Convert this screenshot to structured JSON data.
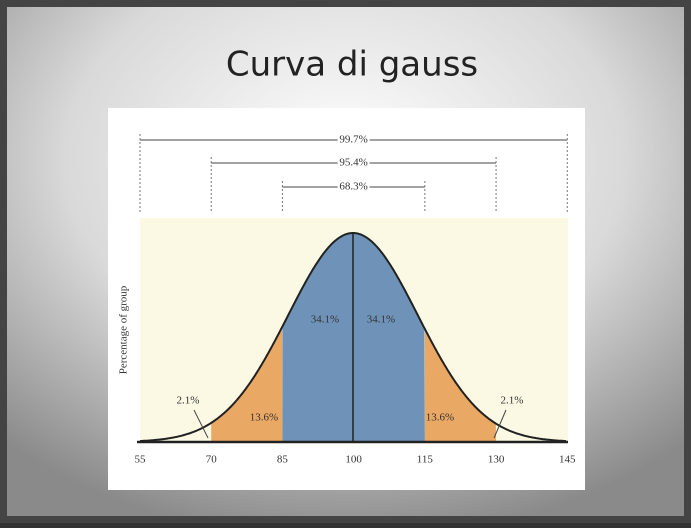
{
  "title": "Curva di gauss",
  "y_axis_label": "Percentage of group",
  "ranges": [
    "99.7%",
    "95.4%",
    "68.3%"
  ],
  "regions": [
    "2.1%",
    "13.6%",
    "34.1%",
    "34.1%",
    "13.6%",
    "2.1%"
  ],
  "x_labels": [
    "55",
    "70",
    "85",
    "100",
    "115",
    "130",
    "145"
  ]
}
